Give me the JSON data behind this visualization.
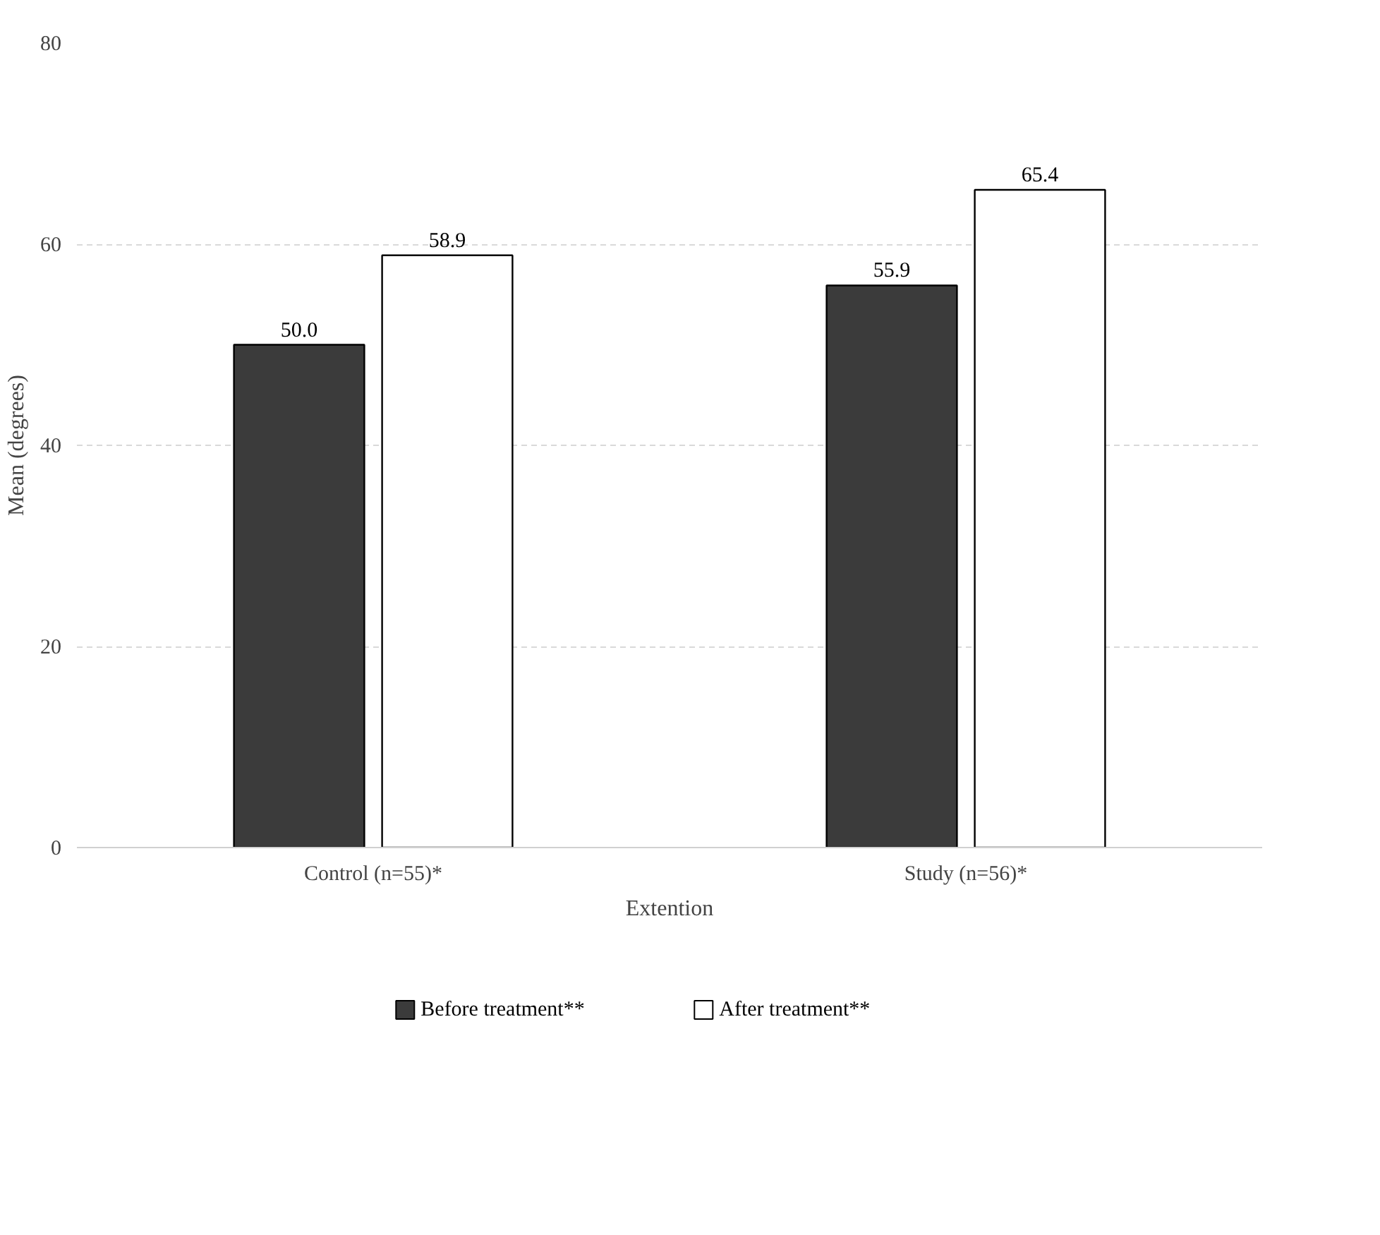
{
  "chart_data": {
    "type": "bar",
    "xlabel": "Extention",
    "ylabel": "Mean (degrees)",
    "categories": [
      "Control (n=55)*",
      "Study (n=56)*"
    ],
    "series": [
      {
        "name": "Before treatment**",
        "color": "#3b3b3b",
        "values": [
          50.0,
          55.9
        ],
        "value_labels": [
          "50.0",
          "55.9"
        ]
      },
      {
        "name": "After treatment**",
        "color": "#ffffff",
        "values": [
          58.9,
          65.4
        ],
        "value_labels": [
          "58.9",
          "65.4"
        ]
      }
    ],
    "ylim": [
      0,
      80
    ],
    "yticks": [
      0,
      20,
      40,
      60,
      80
    ],
    "grid": "y",
    "legend": "bottom"
  }
}
